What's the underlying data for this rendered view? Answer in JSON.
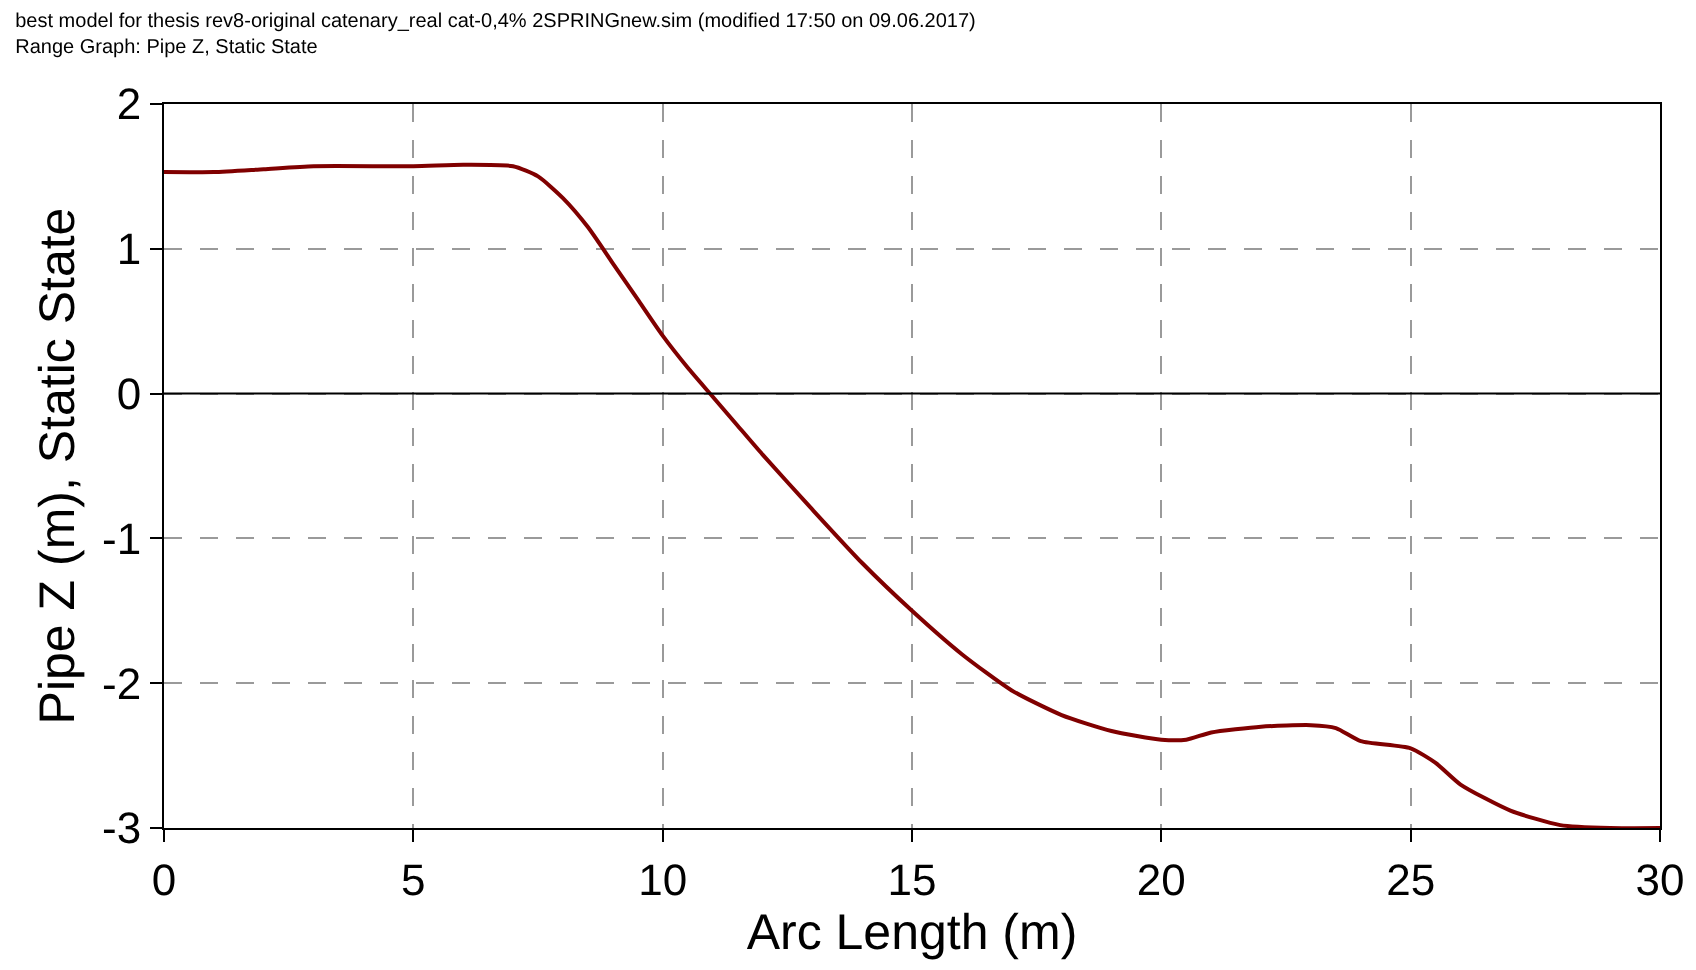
{
  "chart_data": {
    "type": "line",
    "title": "best model for thesis rev8-original catenary_real cat-0,4% 2SPRINGnew.sim (modified 17:50 on 09.06.2017)",
    "subtitle": "Range Graph: Pipe Z, Static State",
    "xlabel": "Arc Length (m)",
    "ylabel": "Pipe Z (m), Static State",
    "x": [
      0,
      1,
      2,
      3,
      5,
      6,
      7,
      7.5,
      8,
      8.5,
      9,
      9.5,
      10,
      10.5,
      11,
      11.5,
      12,
      13,
      14,
      15,
      16,
      17,
      18,
      19,
      20,
      20.5,
      21,
      22,
      23,
      23.5,
      24,
      25,
      25.5,
      26,
      27,
      28,
      29,
      30
    ],
    "series": [
      {
        "color": "#800000",
        "values": [
          1.53,
          1.53,
          1.55,
          1.57,
          1.57,
          1.58,
          1.57,
          1.5,
          1.35,
          1.15,
          0.9,
          0.65,
          0.4,
          0.18,
          -0.02,
          -0.22,
          -0.42,
          -0.8,
          -1.17,
          -1.5,
          -1.8,
          -2.05,
          -2.22,
          -2.33,
          -2.39,
          -2.39,
          -2.34,
          -2.3,
          -2.29,
          -2.31,
          -2.4,
          -2.45,
          -2.55,
          -2.7,
          -2.88,
          -2.98,
          -3.0,
          -3.0
        ]
      }
    ],
    "xlim": [
      0,
      30
    ],
    "xticks": [
      0,
      5,
      10,
      15,
      20,
      25,
      30
    ],
    "ylim": [
      -3,
      2
    ],
    "yticks": [
      -3,
      -2,
      -1,
      0,
      1,
      2
    ],
    "grid": true,
    "line_style": "solid",
    "marker": "none",
    "ref_lines": [
      {
        "axis": "y",
        "value": 0,
        "color": "#000000",
        "line_style": "solid"
      }
    ]
  }
}
